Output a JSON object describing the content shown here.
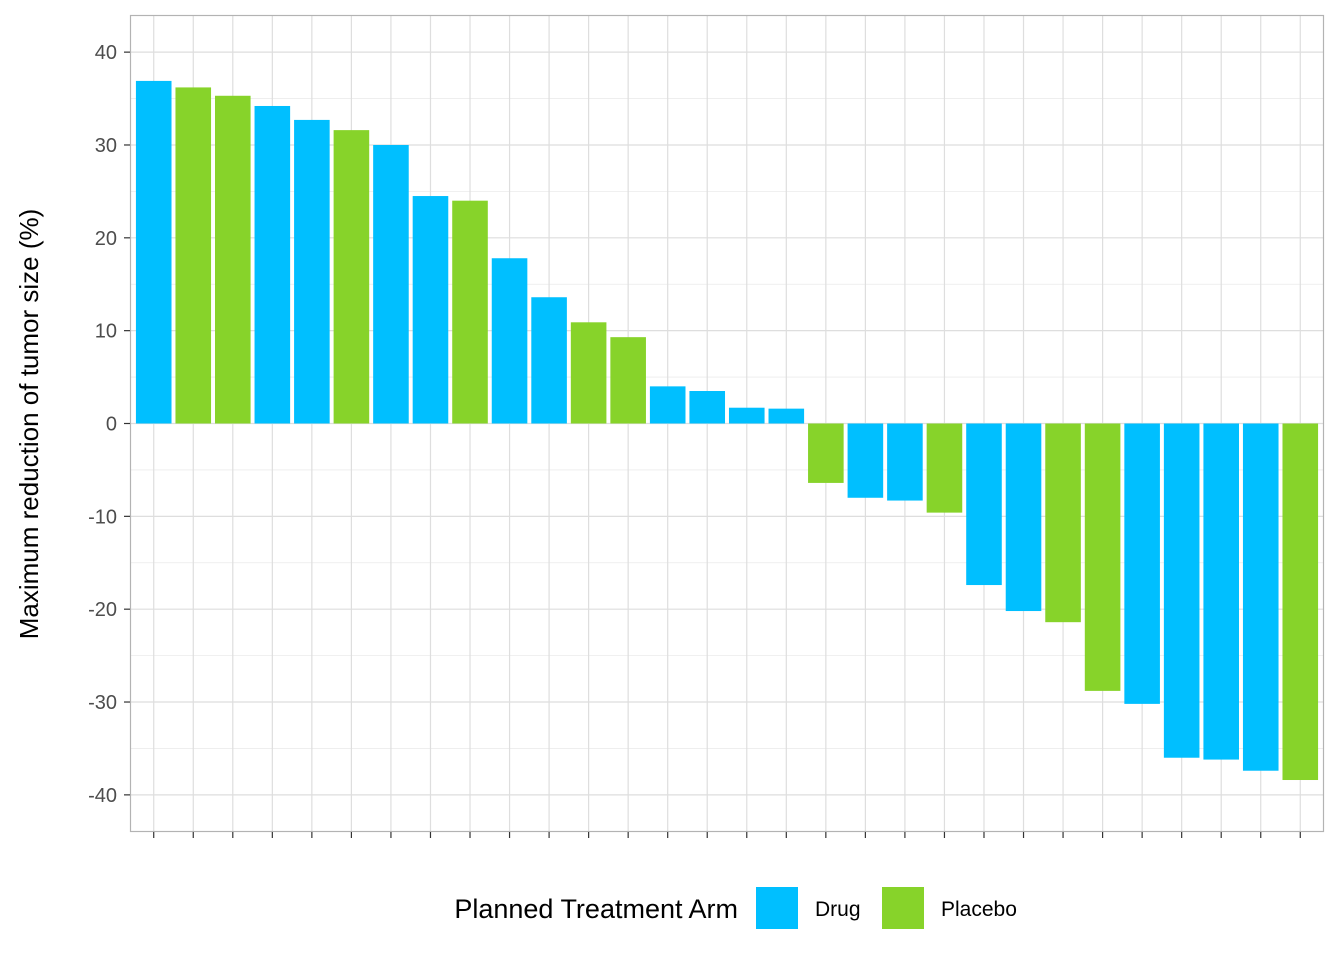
{
  "chart_data": {
    "type": "bar",
    "ylabel": "Maximum reduction of tumor size (%)",
    "xlabel": "",
    "ylim": [
      -44,
      44
    ],
    "yticks": [
      40,
      30,
      20,
      10,
      0,
      -10,
      -20,
      -30,
      -40
    ],
    "grid": true,
    "legend": {
      "placement": "bottom",
      "title": "Planned Treatment Arm",
      "entries": [
        {
          "name": "Drug",
          "color": "#00BFFF"
        },
        {
          "name": "Placebo",
          "color": "#87D32A"
        }
      ]
    },
    "bars": [
      {
        "group": "Drug",
        "value": 36.9
      },
      {
        "group": "Placebo",
        "value": 36.2
      },
      {
        "group": "Placebo",
        "value": 35.3
      },
      {
        "group": "Drug",
        "value": 34.2
      },
      {
        "group": "Drug",
        "value": 32.7
      },
      {
        "group": "Placebo",
        "value": 31.6
      },
      {
        "group": "Drug",
        "value": 30.0
      },
      {
        "group": "Drug",
        "value": 24.5
      },
      {
        "group": "Placebo",
        "value": 24.0
      },
      {
        "group": "Drug",
        "value": 17.8
      },
      {
        "group": "Drug",
        "value": 13.6
      },
      {
        "group": "Placebo",
        "value": 10.9
      },
      {
        "group": "Placebo",
        "value": 9.3
      },
      {
        "group": "Drug",
        "value": 4.0
      },
      {
        "group": "Drug",
        "value": 3.5
      },
      {
        "group": "Drug",
        "value": 1.7
      },
      {
        "group": "Drug",
        "value": 1.6
      },
      {
        "group": "Placebo",
        "value": -6.4
      },
      {
        "group": "Drug",
        "value": -8.0
      },
      {
        "group": "Drug",
        "value": -8.3
      },
      {
        "group": "Placebo",
        "value": -9.6
      },
      {
        "group": "Drug",
        "value": -17.4
      },
      {
        "group": "Drug",
        "value": -20.2
      },
      {
        "group": "Placebo",
        "value": -21.4
      },
      {
        "group": "Placebo",
        "value": -28.8
      },
      {
        "group": "Drug",
        "value": -30.2
      },
      {
        "group": "Drug",
        "value": -36.0
      },
      {
        "group": "Drug",
        "value": -36.2
      },
      {
        "group": "Drug",
        "value": -37.4
      },
      {
        "group": "Placebo",
        "value": -38.4
      }
    ]
  }
}
